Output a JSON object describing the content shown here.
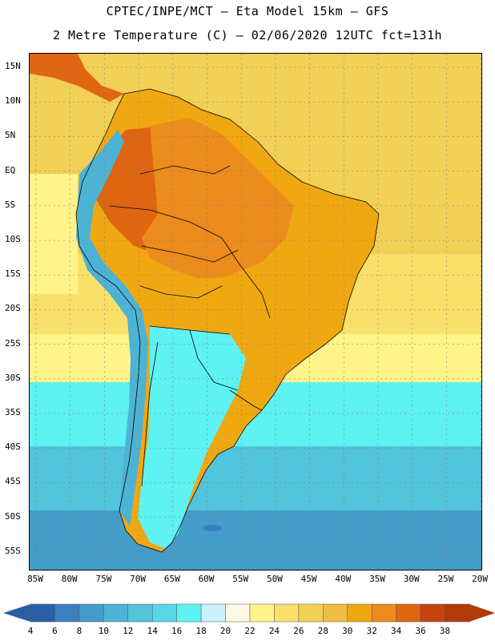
{
  "header": {
    "line1": "CPTEC/INPE/MCT –  Eta Model 15km – GFS",
    "line2": "2 Metre Temperature (C) – 02/06/2020 12UTC fct=131h"
  },
  "map": {
    "lat_labels": [
      "15N",
      "10N",
      "5N",
      "EQ",
      "5S",
      "10S",
      "15S",
      "20S",
      "25S",
      "30S",
      "35S",
      "40S",
      "45S",
      "50S",
      "55S"
    ],
    "lon_labels": [
      "85W",
      "80W",
      "75W",
      "70W",
      "65W",
      "60W",
      "55W",
      "50W",
      "45W",
      "40W",
      "35W",
      "30W",
      "25W",
      "20W"
    ]
  },
  "colorbar": {
    "labels": [
      "4",
      "6",
      "8",
      "10",
      "12",
      "14",
      "16",
      "18",
      "20",
      "22",
      "24",
      "26",
      "28",
      "30",
      "32",
      "34",
      "36",
      "38"
    ],
    "colors": [
      "#2a5fa5",
      "#3b7fc0",
      "#449cc9",
      "#4db3d4",
      "#52c4dc",
      "#58d8e6",
      "#5ef2f2",
      "#cbf2fb",
      "#fff8e6",
      "#fff38a",
      "#f9e06a",
      "#f2cf55",
      "#eebd43",
      "#f0a812",
      "#ec8c1c",
      "#df6511",
      "#c84210",
      "#b13a0a"
    ]
  },
  "map_colors": {
    "ocean_north": "#f2cf55",
    "ocean_north_light": "#f9e06a",
    "ocean_mid": "#fff38a",
    "ocean_south1": "#5ef2f2",
    "ocean_south2": "#52c4dc",
    "ocean_south3": "#449cc9",
    "ocean_south4": "#3b7fc0",
    "land_hot": "#c84210",
    "land_warm": "#df6511",
    "land_orange": "#ec8c1c",
    "land_amber": "#f0a812",
    "andes_cold": "#4db3d4",
    "patagonia": "#3b7fc0",
    "border": "#000000"
  }
}
